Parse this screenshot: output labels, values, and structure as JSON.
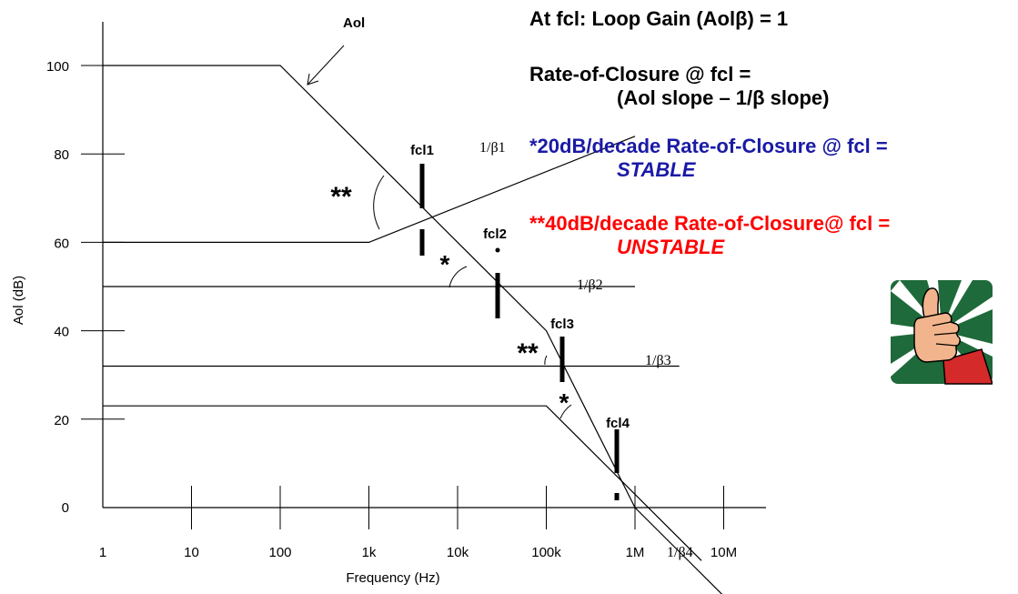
{
  "chart_data": {
    "type": "line",
    "xlabel": "Frequency (Hz)",
    "ylabel": "Aol (dB)",
    "xscale": "log",
    "xlim": [
      1,
      10000000
    ],
    "ylim": [
      0,
      110
    ],
    "x_ticks": [
      1,
      10,
      100,
      1000,
      10000,
      100000,
      1000000,
      10000000
    ],
    "x_tick_labels": [
      "1",
      "10",
      "100",
      "1k",
      "10k",
      "100k",
      "1M",
      "10M"
    ],
    "y_ticks": [
      0,
      20,
      40,
      60,
      80,
      100
    ],
    "y_tick_labels": [
      "0",
      "20",
      "40",
      "60",
      "80",
      "100"
    ],
    "grid": false,
    "series": [
      {
        "name": "Aol",
        "points": [
          [
            1,
            100
          ],
          [
            100,
            100
          ],
          [
            100000,
            40
          ],
          [
            1000000,
            0
          ],
          [
            10000000,
            -20
          ]
        ]
      },
      {
        "name": "1/β1",
        "points": [
          [
            1,
            60
          ],
          [
            1000,
            60
          ],
          [
            1000000,
            84
          ]
        ]
      },
      {
        "name": "1/β2",
        "points": [
          [
            1,
            50
          ],
          [
            1000000,
            50
          ]
        ]
      },
      {
        "name": "1/β3",
        "points": [
          [
            1,
            32
          ],
          [
            3160000,
            32
          ]
        ]
      },
      {
        "name": "1/β4",
        "points": [
          [
            1,
            23
          ],
          [
            100000,
            23
          ],
          [
            5620000,
            -12
          ]
        ]
      }
    ],
    "series_label_text": {
      "aol": "Aol",
      "b1": "1/β1",
      "b2": "1/β2",
      "b3": "1/β3",
      "b4": "1/β4"
    },
    "intersections": [
      {
        "label": "fcl1",
        "x": 4000,
        "y": 68,
        "angle_marker": "**"
      },
      {
        "label": "fcl2",
        "x": 28000,
        "y": 50,
        "angle_marker": "*"
      },
      {
        "label": "fcl3",
        "x": 150000,
        "y": 32,
        "angle_marker": "**"
      },
      {
        "label": "fcl4",
        "x": 630000,
        "y": 8,
        "angle_marker": "*"
      }
    ],
    "colors": {
      "axis": "#000000",
      "line": "#000000",
      "stable": "#1a1aa6",
      "unstable": "#ff0000"
    }
  },
  "notes": {
    "line1": "At fcl: Loop Gain (Aolβ) = 1",
    "line2a": "Rate-of-Closure @ fcl =",
    "line2b": "(Aol slope – 1/β slope)",
    "line3a": "*20dB/decade Rate-of-Closure @ fcl =",
    "line3b": "STABLE",
    "line4a": "**40dB/decade Rate-of-Closure@ fcl =",
    "line4b": "UNSTABLE"
  },
  "badge": {
    "icon": "thumbs-up-icon",
    "colors": {
      "bg": "#1f6a3a",
      "rays": "#ffffff",
      "hand": "#f2b48c",
      "sleeve": "#d42a2a"
    }
  }
}
